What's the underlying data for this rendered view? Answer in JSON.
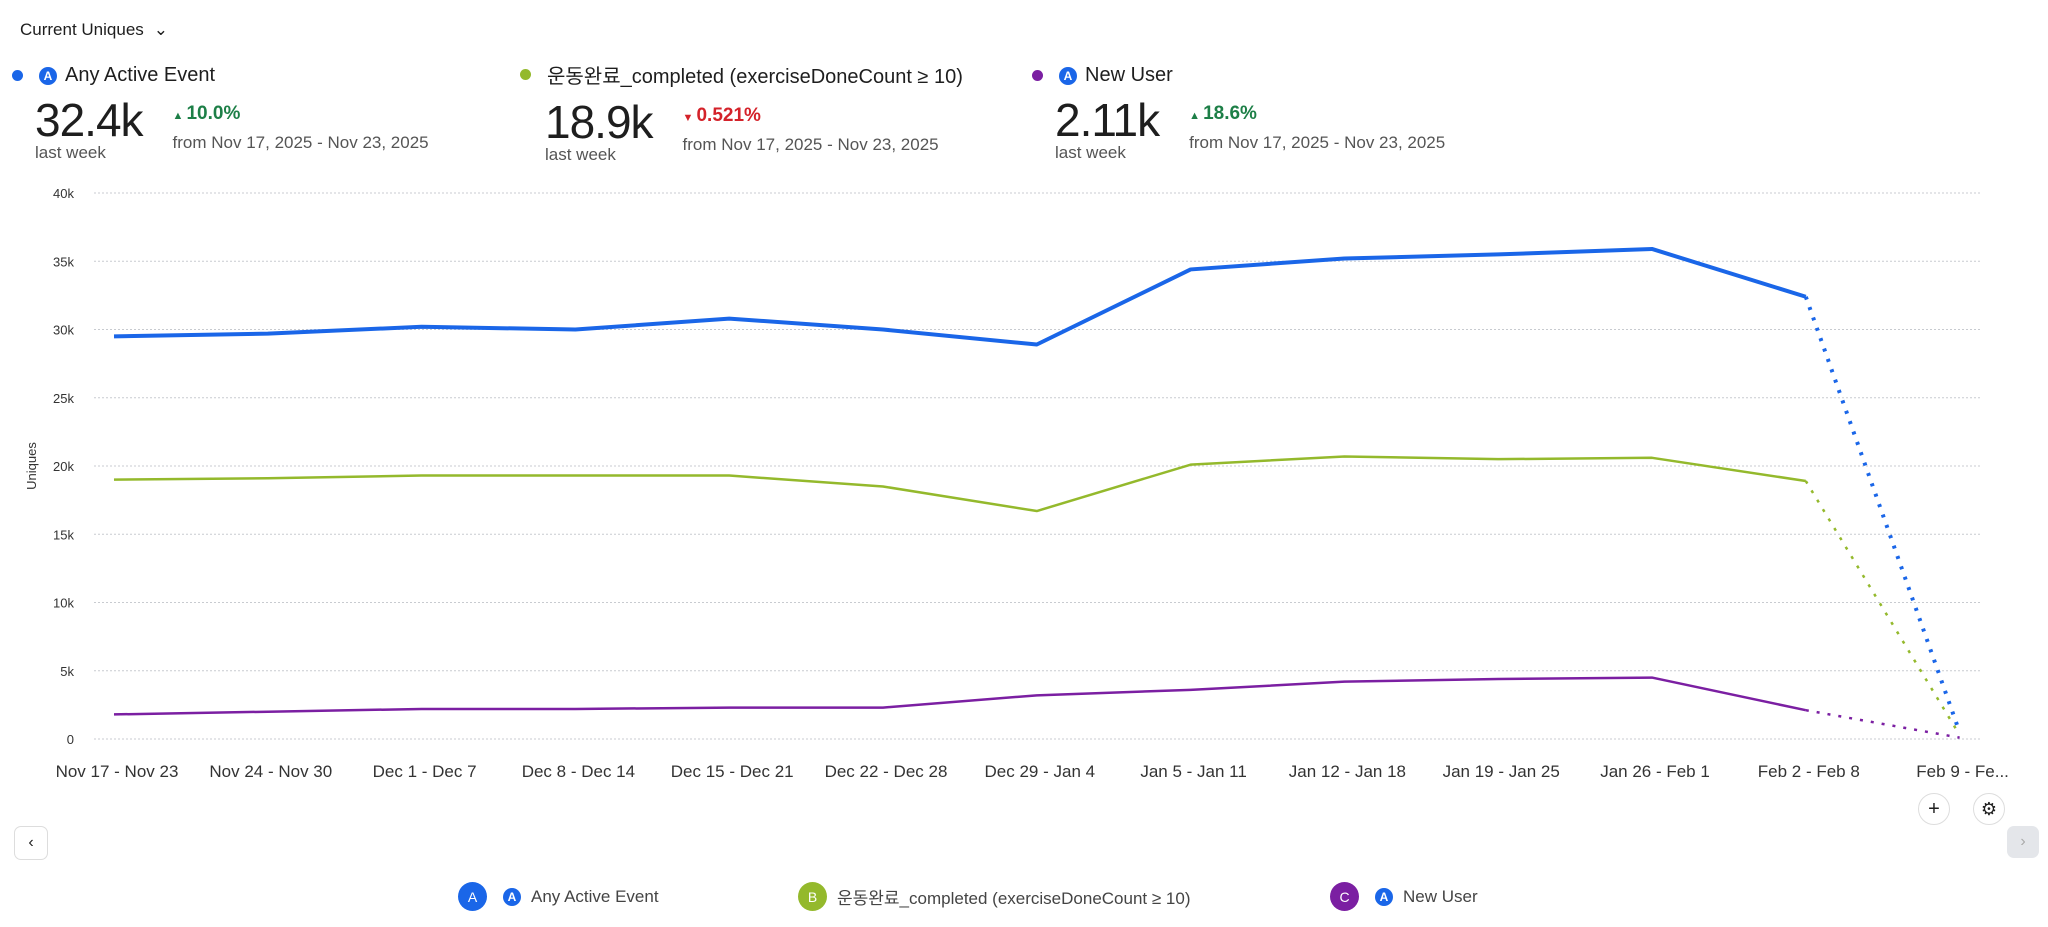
{
  "metric_selector": {
    "label": "Current Uniques"
  },
  "metrics": [
    {
      "name": "Any Active Event",
      "value": "32.4k",
      "period": "last week",
      "change": "10.0%",
      "direction": "up",
      "from": "from Nov 17, 2025 - Nov 23, 2025",
      "color": "#1a66e8"
    },
    {
      "name": "운동완료_completed (exerciseDoneCount ≥ 10)",
      "value": "18.9k",
      "period": "last week",
      "change": "0.521%",
      "direction": "down",
      "from": "from Nov 17, 2025 - Nov 23, 2025",
      "color": "#94b92c"
    },
    {
      "name": "New User",
      "value": "2.11k",
      "period": "last week",
      "change": "18.6%",
      "direction": "up",
      "from": "from Nov 17, 2025 - Nov 23, 2025",
      "color": "#7b1fa2"
    }
  ],
  "legend": [
    {
      "letter": "A",
      "label": "Any Active Event"
    },
    {
      "letter": "B",
      "label": "운동완료_completed (exerciseDoneCount ≥ 10)"
    },
    {
      "letter": "C",
      "label": "New User"
    }
  ],
  "chart_data": {
    "type": "line",
    "ylabel": "Uniques",
    "xlabel": "",
    "ylim": [
      0,
      40000
    ],
    "yticks": [
      "0",
      "5k",
      "10k",
      "15k",
      "20k",
      "25k",
      "30k",
      "35k",
      "40k"
    ],
    "grid": true,
    "categories": [
      "Nov 17 - Nov 23",
      "Nov 24 - Nov 30",
      "Dec 1 - Dec 7",
      "Dec 8 - Dec 14",
      "Dec 15 - Dec 21",
      "Dec 22 - Dec 28",
      "Dec 29 - Jan 4",
      "Jan 5 - Jan 11",
      "Jan 12 - Jan 18",
      "Jan 19 - Jan 25",
      "Jan 26 - Feb 1",
      "Feb 2 - Feb 8",
      "Feb 9 - Fe..."
    ],
    "incomplete_last_point": true,
    "series": [
      {
        "name": "Any Active Event",
        "color": "#1a66e8",
        "values": [
          29500,
          29700,
          30200,
          30000,
          30800,
          30000,
          28900,
          34400,
          35200,
          35500,
          35900,
          32400,
          500
        ]
      },
      {
        "name": "운동완료_completed (exerciseDoneCount ≥ 10)",
        "color": "#94b92c",
        "values": [
          19000,
          19100,
          19300,
          19300,
          19300,
          18500,
          16700,
          20100,
          20700,
          20500,
          20600,
          18900,
          300
        ]
      },
      {
        "name": "New User",
        "color": "#7b1fa2",
        "values": [
          1800,
          2000,
          2200,
          2200,
          2300,
          2300,
          3200,
          3600,
          4200,
          4400,
          4500,
          2110,
          100
        ]
      }
    ]
  }
}
